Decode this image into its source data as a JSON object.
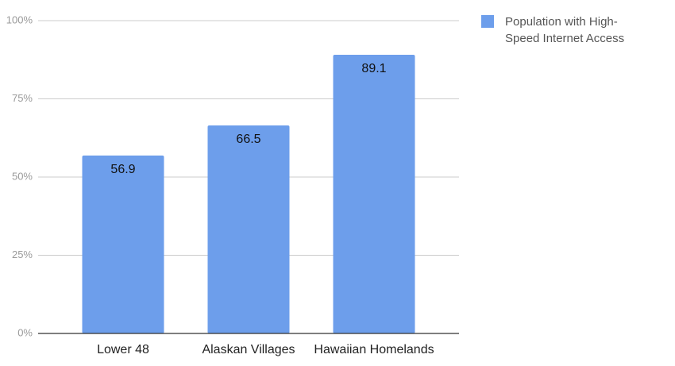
{
  "chart_data": {
    "type": "bar",
    "categories": [
      "Lower 48",
      "Alaskan Villages",
      "Hawaiian Homelands"
    ],
    "series": [
      {
        "name": "Population with High-Speed Internet Access",
        "color": "#6d9eeb",
        "values": [
          56.9,
          66.5,
          89.1
        ]
      }
    ],
    "ylim": [
      0,
      100
    ],
    "yticks": [
      {
        "value": 0,
        "label": "0%"
      },
      {
        "value": 25,
        "label": "25%"
      },
      {
        "value": 50,
        "label": "50%"
      },
      {
        "value": 75,
        "label": "75%"
      },
      {
        "value": 100,
        "label": "100%"
      }
    ],
    "grid": true,
    "legend": "right"
  }
}
